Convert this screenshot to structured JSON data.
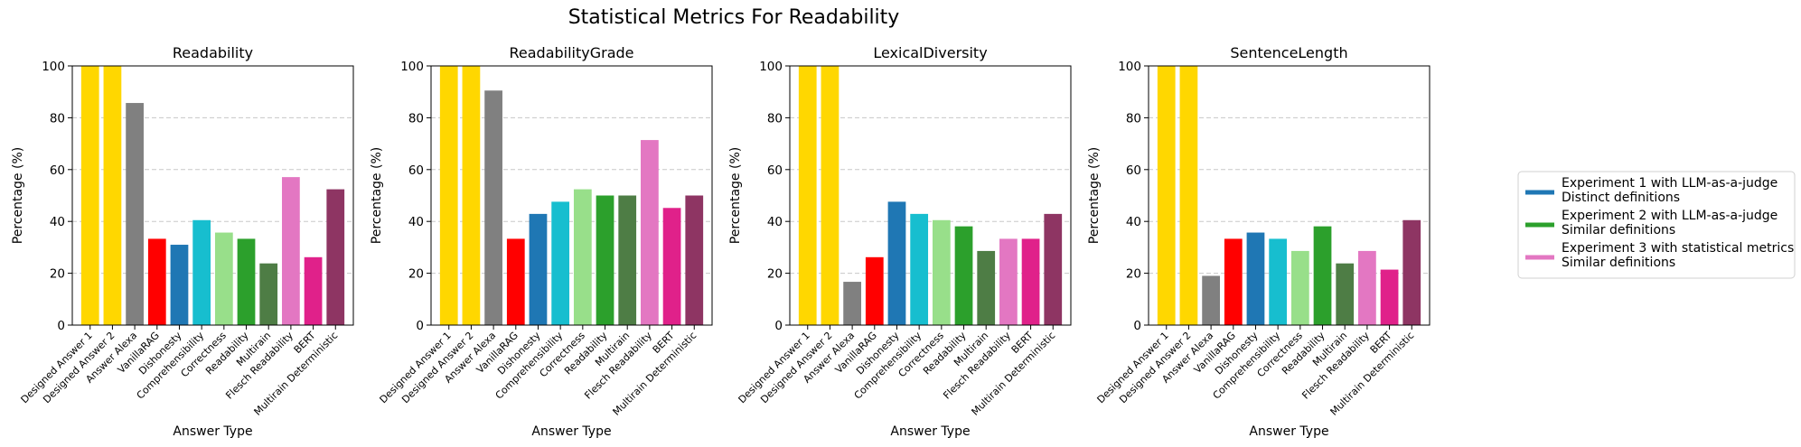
{
  "figure": {
    "title": "Statistical Metrics For Readability"
  },
  "chart_data": [
    {
      "type": "bar",
      "title": "Readability",
      "xlabel": "Answer Type",
      "ylabel": "Percentage (%)",
      "ylim": [
        0,
        100
      ],
      "yticks": [
        0,
        20,
        40,
        60,
        80,
        100
      ],
      "grid": "y-dashed",
      "categories": [
        "Designed Answer 1",
        "Designed Answer 2",
        "Answer Alexa",
        "VanillaRAG",
        "Dishonesty",
        "Comprehensibility",
        "Correctness",
        "Readability",
        "Multirain",
        "Flesch Readability",
        "BERT",
        "Multirain Deterministic"
      ],
      "values": [
        100,
        100,
        85.7,
        33.3,
        31,
        40.5,
        35.7,
        33.3,
        23.8,
        57.1,
        26.2,
        52.4
      ]
    },
    {
      "type": "bar",
      "title": "ReadabilityGrade",
      "xlabel": "Answer Type",
      "ylabel": "Percentage (%)",
      "ylim": [
        0,
        100
      ],
      "yticks": [
        0,
        20,
        40,
        60,
        80,
        100
      ],
      "grid": "y-dashed",
      "categories": [
        "Designed Answer 1",
        "Designed Answer 2",
        "Answer Alexa",
        "VanillaRAG",
        "Dishonesty",
        "Comprehensibility",
        "Correctness",
        "Readability",
        "Multirain",
        "Flesch Readability",
        "BERT",
        "Multirain Deterministic"
      ],
      "values": [
        100,
        100,
        90.5,
        33.3,
        42.9,
        47.6,
        52.4,
        50,
        50,
        71.4,
        45.2,
        50
      ]
    },
    {
      "type": "bar",
      "title": "LexicalDiversity",
      "xlabel": "Answer Type",
      "ylabel": "Percentage (%)",
      "ylim": [
        0,
        100
      ],
      "yticks": [
        0,
        20,
        40,
        60,
        80,
        100
      ],
      "grid": "y-dashed",
      "categories": [
        "Designed Answer 1",
        "Designed Answer 2",
        "Answer Alexa",
        "VanillaRAG",
        "Dishonesty",
        "Comprehensibility",
        "Correctness",
        "Readability",
        "Multirain",
        "Flesch Readability",
        "BERT",
        "Multirain Deterministic"
      ],
      "values": [
        100,
        100,
        16.7,
        26.2,
        47.6,
        42.9,
        40.5,
        38.1,
        28.6,
        33.3,
        33.3,
        42.9
      ]
    },
    {
      "type": "bar",
      "title": "SentenceLength",
      "xlabel": "Answer Type",
      "ylabel": "Percentage (%)",
      "ylim": [
        0,
        100
      ],
      "yticks": [
        0,
        20,
        40,
        60,
        80,
        100
      ],
      "grid": "y-dashed",
      "categories": [
        "Designed Answer 1",
        "Designed Answer 2",
        "Answer Alexa",
        "VanillaRAG",
        "Dishonesty",
        "Comprehensibility",
        "Correctness",
        "Readability",
        "Multirain",
        "Flesch Readability",
        "BERT",
        "Multirain Deterministic"
      ],
      "values": [
        100,
        100,
        19,
        33.3,
        35.7,
        33.3,
        28.6,
        38.1,
        23.8,
        28.6,
        21.4,
        40.5
      ]
    }
  ],
  "bar_colors": [
    "#ffd700",
    "#ffd700",
    "#808080",
    "#ff0000",
    "#1f77b4",
    "#17becf",
    "#98df8a",
    "#2ca02c",
    "#4e7d45",
    "#e377c2",
    "#e0218a",
    "#8e3563"
  ],
  "legend": {
    "placement": "right",
    "entries": [
      {
        "line1": "Experiment 1 with LLM-as-a-judge",
        "line2": "Distinct definitions",
        "color": "#1f77b4"
      },
      {
        "line1": "Experiment 2 with LLM-as-a-judge",
        "line2": "Similar definitions",
        "color": "#2ca02c"
      },
      {
        "line1": "Experiment 3 with statistical metrics",
        "line2": "Similar definitions",
        "color": "#e377c2"
      }
    ]
  }
}
